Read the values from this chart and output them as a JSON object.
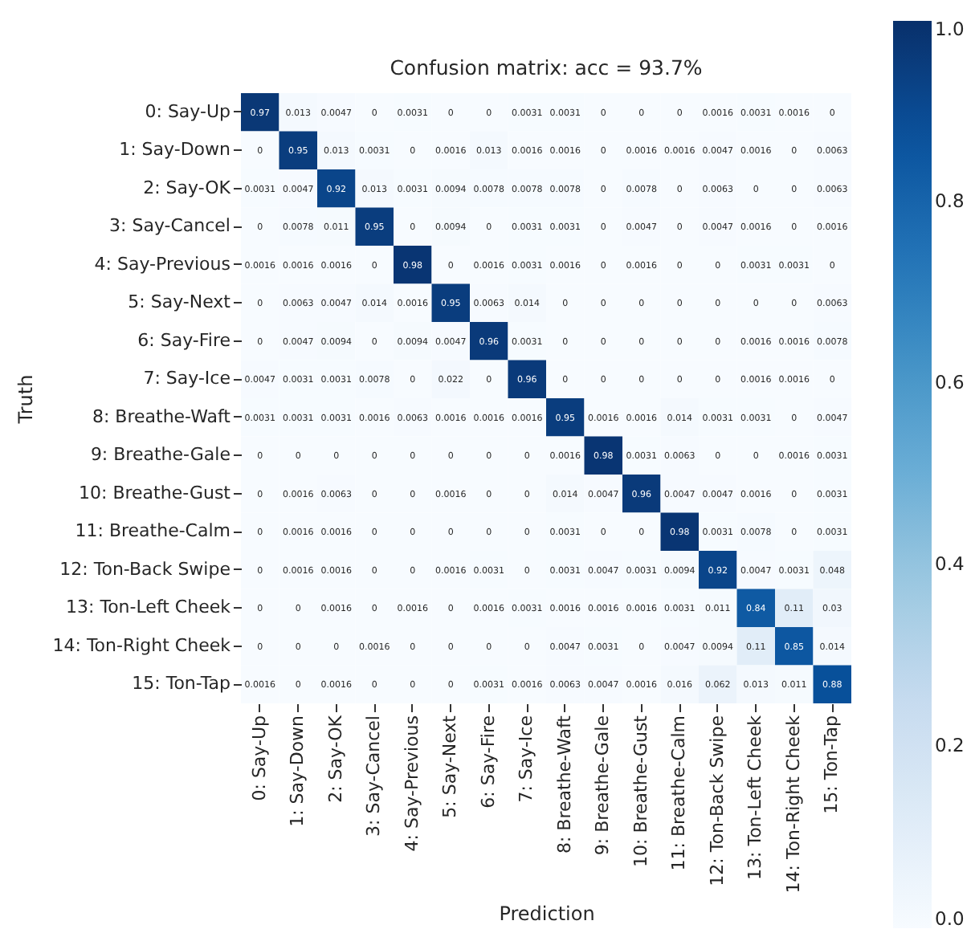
{
  "chart_data": {
    "type": "heatmap",
    "title": "Confusion matrix: acc = 93.7%",
    "xlabel": "Prediction",
    "ylabel": "Truth",
    "categories": [
      "0: Say-Up",
      "1: Say-Down",
      "2: Say-OK",
      "3: Say-Cancel",
      "4: Say-Previous",
      "5: Say-Next",
      "6: Say-Fire",
      "7: Say-Ice",
      "8: Breathe-Waft",
      "9: Breathe-Gale",
      "10: Breathe-Gust",
      "11: Breathe-Calm",
      "12: Ton-Back Swipe",
      "13: Ton-Left Cheek",
      "14: Ton-Right Cheek",
      "15: Ton-Tap"
    ],
    "y_categories": [
      "0: Say-Up",
      "1: Say-Down",
      "2: Say-OK",
      "3: Say-Cancel",
      "4: Say-Previous",
      "5: Say-Next",
      "6: Say-Fire",
      "7: Say-Ice",
      "8: Breathe-Waft",
      "9: Breathe-Gale",
      "10: Breathe-Gust",
      "11: Breathe-Calm",
      "12: Ton-Back Swipe",
      "13: Ton-Left Cheek",
      "14: Ton-Right Cheek",
      "15: Ton-Tap"
    ],
    "cells": [
      [
        0.97,
        0.013,
        0.0047,
        0,
        0.0031,
        0,
        0,
        0.0031,
        0.0031,
        0,
        0,
        0,
        0.0016,
        0.0031,
        0.0016,
        0
      ],
      [
        0,
        0.95,
        0.013,
        0.0031,
        0,
        0.0016,
        0.013,
        0.0016,
        0.0016,
        0,
        0.0016,
        0.0016,
        0.0047,
        0.0016,
        0,
        0.0063
      ],
      [
        0.0031,
        0.0047,
        0.92,
        0.013,
        0.0031,
        0.0094,
        0.0078,
        0.0078,
        0.0078,
        0,
        0.0078,
        0,
        0.0063,
        0,
        0,
        0.0063
      ],
      [
        0,
        0.0078,
        0.011,
        0.95,
        0,
        0.0094,
        0,
        0.0031,
        0.0031,
        0,
        0.0047,
        0,
        0.0047,
        0.0016,
        0,
        0.0016
      ],
      [
        0.0016,
        0.0016,
        0.0016,
        0,
        0.98,
        0,
        0.0016,
        0.0031,
        0.0016,
        0,
        0.0016,
        0,
        0,
        0.0031,
        0.0031,
        0
      ],
      [
        0,
        0.0063,
        0.0047,
        0.014,
        0.0016,
        0.95,
        0.0063,
        0.014,
        0,
        0,
        0,
        0,
        0,
        0,
        0,
        0.0063
      ],
      [
        0,
        0.0047,
        0.0094,
        0,
        0.0094,
        0.0047,
        0.96,
        0.0031,
        0,
        0,
        0,
        0,
        0,
        0.0016,
        0.0016,
        0.0078
      ],
      [
        0.0047,
        0.0031,
        0.0031,
        0.0078,
        0,
        0.022,
        0,
        0.96,
        0,
        0,
        0,
        0,
        0,
        0.0016,
        0.0016,
        0
      ],
      [
        0.0031,
        0.0031,
        0.0031,
        0.0016,
        0.0063,
        0.0016,
        0.0016,
        0.0016,
        0.95,
        0.0016,
        0.0016,
        0.014,
        0.0031,
        0.0031,
        0,
        0.0047
      ],
      [
        0,
        0,
        0,
        0,
        0,
        0,
        0,
        0,
        0.0016,
        0.98,
        0.0031,
        0.0063,
        0,
        0,
        0.0016,
        0.0031
      ],
      [
        0,
        0.0016,
        0.0063,
        0,
        0,
        0.0016,
        0,
        0,
        0.014,
        0.0047,
        0.96,
        0.0047,
        0.0047,
        0.0016,
        0,
        0.0031
      ],
      [
        0,
        0.0016,
        0.0016,
        0,
        0,
        0,
        0,
        0,
        0.0031,
        0,
        0,
        0.98,
        0.0031,
        0.0078,
        0,
        0.0031
      ],
      [
        0,
        0.0016,
        0.0016,
        0,
        0,
        0.0016,
        0.0031,
        0,
        0.0031,
        0.0047,
        0.0031,
        0.0094,
        0.92,
        0.0047,
        0.0031,
        0.048
      ],
      [
        0,
        0,
        0.0016,
        0,
        0.0016,
        0,
        0.0016,
        0.0031,
        0.0016,
        0.0016,
        0.0016,
        0.0031,
        0.011,
        0.84,
        0.11,
        0.03
      ],
      [
        0,
        0,
        0,
        0.0016,
        0,
        0,
        0,
        0,
        0.0047,
        0.0031,
        0,
        0.0047,
        0.0094,
        0.11,
        0.85,
        0.014
      ],
      [
        0.0016,
        0,
        0.0016,
        0,
        0,
        0,
        0.0031,
        0.0016,
        0.0063,
        0.0047,
        0.0016,
        0.016,
        0.062,
        0.013,
        0.011,
        0.88
      ]
    ],
    "clim": [
      0,
      1
    ],
    "cticks": [
      {
        "value": 0,
        "label": "0.0"
      },
      {
        "value": 0.2,
        "label": "0.2"
      },
      {
        "value": 0.4,
        "label": "0.4"
      },
      {
        "value": 0.6,
        "label": "0.6"
      },
      {
        "value": 0.8,
        "label": "0.8"
      },
      {
        "value": 1,
        "label": "1.0"
      }
    ],
    "data_labels": true
  }
}
